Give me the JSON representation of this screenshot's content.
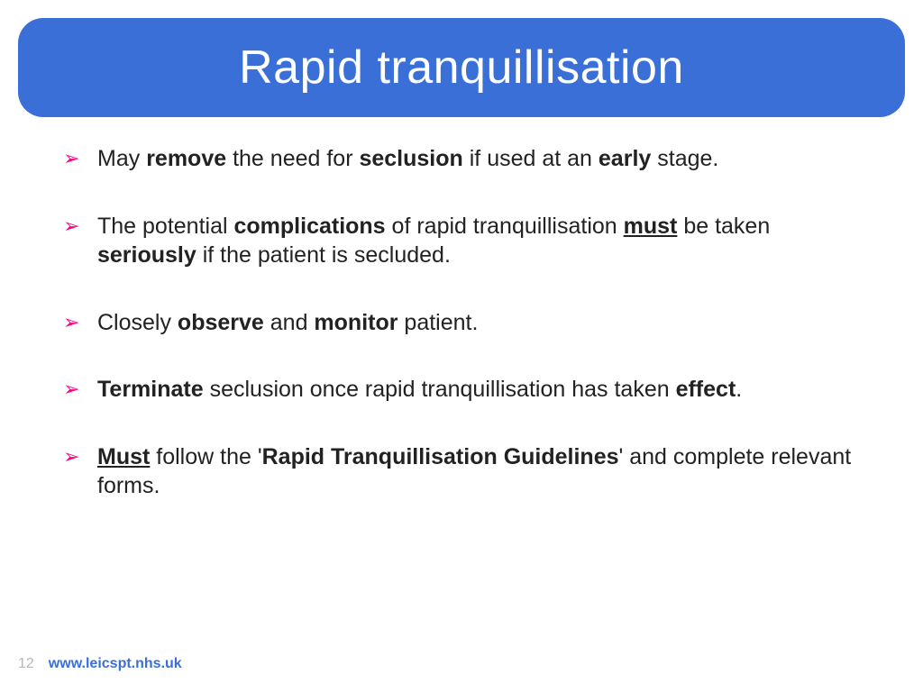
{
  "colors": {
    "banner_bg": "#3a6fd8",
    "title_text": "#ffffff",
    "bullet_arrow": "#ff007f",
    "body_text": "#222222",
    "page_num": "#b8b8b8",
    "link": "#3a6fd8",
    "slide_bg": "#ffffff"
  },
  "typography": {
    "title_fontsize": 52,
    "body_fontsize": 25,
    "footer_fontsize": 16
  },
  "title": "Rapid tranquillisation",
  "bullets": [
    {
      "segments": [
        {
          "text": "May ",
          "bold": false
        },
        {
          "text": "remove",
          "bold": true
        },
        {
          "text": " the need for ",
          "bold": false
        },
        {
          "text": "seclusion",
          "bold": true
        },
        {
          "text": " if used at an ",
          "bold": false
        },
        {
          "text": "early",
          "bold": true
        },
        {
          "text": " stage.",
          "bold": false
        }
      ]
    },
    {
      "segments": [
        {
          "text": "The potential ",
          "bold": false
        },
        {
          "text": "complications",
          "bold": true
        },
        {
          "text": " of rapid tranquillisation ",
          "bold": false
        },
        {
          "text": "must",
          "bold": true,
          "underline": true
        },
        {
          "text": " be taken ",
          "bold": false
        },
        {
          "text": "seriously",
          "bold": true
        },
        {
          "text": " if the patient is secluded.",
          "bold": false
        }
      ]
    },
    {
      "segments": [
        {
          "text": "Closely ",
          "bold": false
        },
        {
          "text": "observe",
          "bold": true
        },
        {
          "text": " and ",
          "bold": false
        },
        {
          "text": "monitor",
          "bold": true
        },
        {
          "text": " patient.",
          "bold": false
        }
      ]
    },
    {
      "segments": [
        {
          "text": "Terminate",
          "bold": true
        },
        {
          "text": " seclusion once rapid tranquillisation has taken ",
          "bold": false
        },
        {
          "text": "effect",
          "bold": true
        },
        {
          "text": ".",
          "bold": false
        }
      ]
    },
    {
      "segments": [
        {
          "text": "Must",
          "bold": true,
          "underline": true
        },
        {
          "text": " follow the '",
          "bold": false
        },
        {
          "text": "Rapid Tranquillisation Guidelines",
          "bold": true
        },
        {
          "text": "' and complete relevant forms.",
          "bold": false
        }
      ]
    }
  ],
  "footer": {
    "page_number": "12",
    "link_text": "www.leicspt.nhs.uk"
  }
}
